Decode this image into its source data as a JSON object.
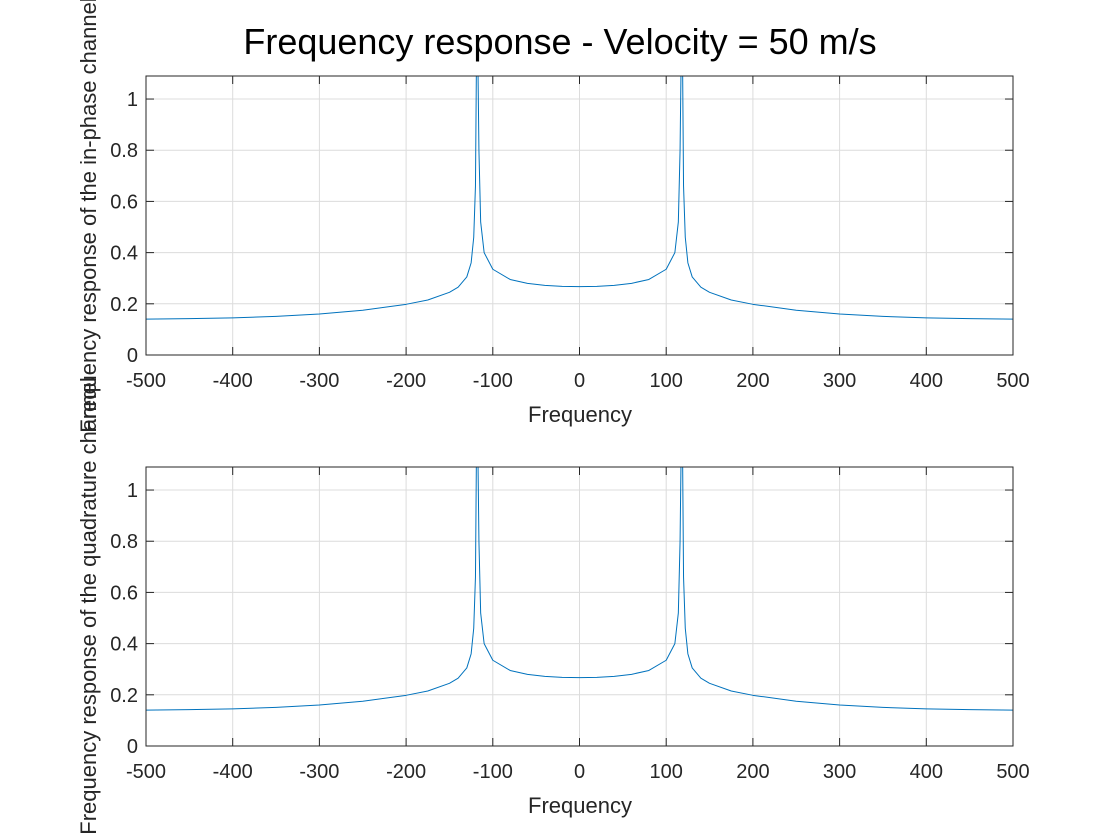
{
  "figure": {
    "title": "Frequency response - Velocity = 50 m/s"
  },
  "colors": {
    "series": "#0072BD",
    "grid": "#dcdcdc",
    "axis": "#262626",
    "background": "#ffffff"
  },
  "chart_data": [
    {
      "type": "line",
      "title": "Frequency response - Velocity = 50 m/s",
      "xlabel": "Frequency",
      "ylabel": "Frequency response of the in-phase channel",
      "xlim": [
        -500,
        500
      ],
      "ylim": [
        0,
        1.09
      ],
      "xticks": [
        -500,
        -400,
        -300,
        -200,
        -100,
        0,
        100,
        200,
        300,
        400,
        500
      ],
      "yticks": [
        0,
        0.2,
        0.4,
        0.6,
        0.8,
        1
      ],
      "ytick_labels": [
        "0",
        "0.2",
        "0.4",
        "0.6",
        "0.8",
        "1"
      ],
      "grid": true,
      "legend": "none",
      "series": [
        {
          "x": [
            -500,
            -450,
            -400,
            -350,
            -300,
            -250,
            -200,
            -175,
            -150,
            -140,
            -130,
            -125,
            -122,
            -120,
            -119,
            -118,
            -117,
            -116,
            -114,
            -110,
            -100,
            -80,
            -60,
            -40,
            -20,
            0,
            20,
            40,
            60,
            80,
            100,
            110,
            114,
            116,
            117,
            118,
            119,
            120,
            122,
            125,
            130,
            140,
            150,
            175,
            200,
            250,
            300,
            350,
            400,
            450,
            500
          ],
          "y": [
            0.14,
            0.142,
            0.145,
            0.151,
            0.16,
            0.175,
            0.198,
            0.215,
            0.245,
            0.265,
            0.305,
            0.36,
            0.46,
            0.66,
            1.09,
            1.09,
            1.09,
            0.8,
            0.52,
            0.4,
            0.335,
            0.295,
            0.28,
            0.272,
            0.268,
            0.267,
            0.268,
            0.272,
            0.28,
            0.295,
            0.335,
            0.4,
            0.52,
            0.8,
            1.09,
            1.09,
            1.09,
            0.66,
            0.46,
            0.36,
            0.305,
            0.265,
            0.245,
            0.215,
            0.198,
            0.175,
            0.16,
            0.151,
            0.145,
            0.142,
            0.14
          ]
        }
      ]
    },
    {
      "type": "line",
      "xlabel": "Frequency",
      "ylabel": "Frequency response of the quadrature channel",
      "xlim": [
        -500,
        500
      ],
      "ylim": [
        0,
        1.09
      ],
      "xticks": [
        -500,
        -400,
        -300,
        -200,
        -100,
        0,
        100,
        200,
        300,
        400,
        500
      ],
      "yticks": [
        0,
        0.2,
        0.4,
        0.6,
        0.8,
        1
      ],
      "ytick_labels": [
        "0",
        "0.2",
        "0.4",
        "0.6",
        "0.8",
        "1"
      ],
      "grid": true,
      "legend": "none",
      "series": [
        {
          "x": [
            -500,
            -450,
            -400,
            -350,
            -300,
            -250,
            -200,
            -175,
            -150,
            -140,
            -130,
            -125,
            -122,
            -120,
            -119,
            -118,
            -117,
            -116,
            -114,
            -110,
            -100,
            -80,
            -60,
            -40,
            -20,
            0,
            20,
            40,
            60,
            80,
            100,
            110,
            114,
            116,
            117,
            118,
            119,
            120,
            122,
            125,
            130,
            140,
            150,
            175,
            200,
            250,
            300,
            350,
            400,
            450,
            500
          ],
          "y": [
            0.14,
            0.142,
            0.145,
            0.151,
            0.16,
            0.175,
            0.198,
            0.215,
            0.245,
            0.265,
            0.305,
            0.36,
            0.46,
            0.66,
            1.09,
            1.09,
            1.09,
            0.8,
            0.52,
            0.4,
            0.335,
            0.295,
            0.28,
            0.272,
            0.268,
            0.267,
            0.268,
            0.272,
            0.28,
            0.295,
            0.335,
            0.4,
            0.52,
            0.8,
            1.09,
            1.09,
            1.09,
            0.66,
            0.46,
            0.36,
            0.305,
            0.265,
            0.245,
            0.215,
            0.198,
            0.175,
            0.16,
            0.151,
            0.145,
            0.142,
            0.14
          ]
        }
      ]
    }
  ]
}
